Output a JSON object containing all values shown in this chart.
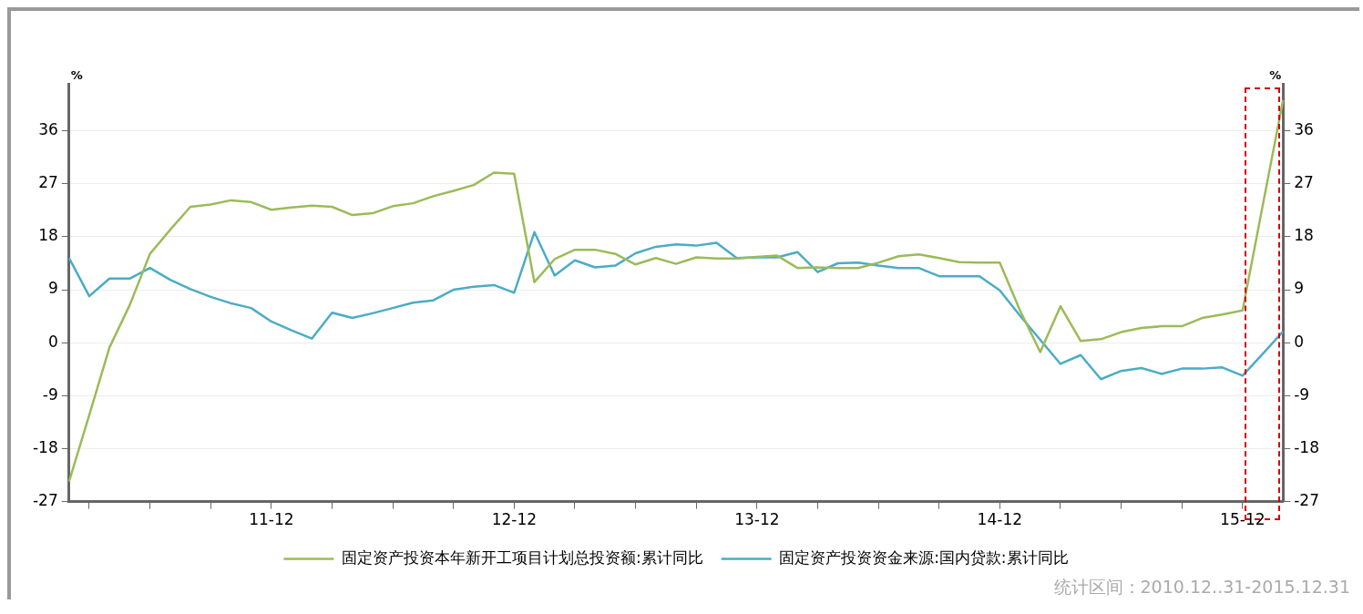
{
  "chart_data": {
    "type": "line",
    "categories": [
      null,
      null,
      null,
      null,
      null,
      null,
      null,
      null,
      null,
      null,
      "11-12",
      null,
      null,
      null,
      null,
      null,
      null,
      null,
      null,
      null,
      null,
      null,
      "12-12",
      null,
      null,
      null,
      null,
      null,
      null,
      null,
      null,
      null,
      null,
      null,
      "13-12",
      null,
      null,
      null,
      null,
      null,
      null,
      null,
      null,
      null,
      null,
      null,
      "14-12",
      null,
      null,
      null,
      null,
      null,
      null,
      null,
      null,
      null,
      null,
      null,
      "15-12",
      null,
      null
    ],
    "series": [
      {
        "name": "固定资产投资本年新开工项目计划总投资额:累计同比",
        "color": "#9bbb59",
        "values": [
          -23.6,
          -12.3,
          -0.8,
          6.4,
          15.1,
          19.2,
          23.1,
          23.5,
          24.2,
          23.9,
          22.6,
          23.0,
          23.3,
          23.1,
          21.7,
          22.0,
          23.2,
          23.7,
          24.9,
          25.8,
          26.8,
          28.9,
          28.7,
          10.3,
          14.2,
          15.8,
          15.8,
          15.1,
          13.3,
          14.4,
          13.4,
          14.5,
          14.3,
          14.3,
          14.6,
          14.8,
          12.7,
          12.8,
          12.7,
          12.7,
          13.6,
          14.7,
          15.0,
          14.4,
          13.7,
          13.6,
          13.6,
          5.5,
          -1.6,
          6.2,
          0.3,
          0.6,
          1.8,
          2.5,
          2.8,
          2.8,
          4.2,
          4.8,
          5.5,
          23.4,
          41.2
        ]
      },
      {
        "name": "固定资产投资资金来源:国内贷款:累计同比",
        "color": "#4bacc6",
        "values": [
          14.4,
          7.9,
          10.9,
          10.9,
          12.7,
          10.7,
          9.1,
          7.8,
          6.7,
          5.9,
          3.6,
          2.1,
          0.7,
          5.1,
          4.2,
          5.0,
          5.9,
          6.8,
          7.2,
          9.0,
          9.5,
          9.8,
          8.5,
          18.8,
          11.4,
          14.0,
          12.8,
          13.1,
          15.2,
          16.3,
          16.7,
          16.5,
          17.0,
          14.4,
          14.5,
          14.5,
          15.4,
          12.0,
          13.5,
          13.6,
          13.1,
          12.7,
          12.7,
          11.3,
          11.3,
          11.3,
          8.9,
          4.6,
          0.5,
          -3.6,
          -2.1,
          -6.2,
          -4.8,
          -4.3,
          -5.3,
          -4.4,
          -4.4,
          -4.2,
          -5.6,
          -1.9,
          1.9
        ]
      }
    ],
    "ylabel": "%",
    "y2label": "%",
    "ylim": [
      -27,
      44
    ],
    "yticks": [
      -27,
      -18,
      -9,
      0,
      9,
      18,
      27,
      36
    ],
    "y2lim": [
      -27,
      44
    ],
    "y2ticks": [
      -27,
      -18,
      -9,
      0,
      9,
      18,
      27,
      36
    ],
    "grid": "y",
    "legend": "bottom",
    "annotations": [
      "统计区间：2010.12..31-2015.12.31"
    ]
  }
}
